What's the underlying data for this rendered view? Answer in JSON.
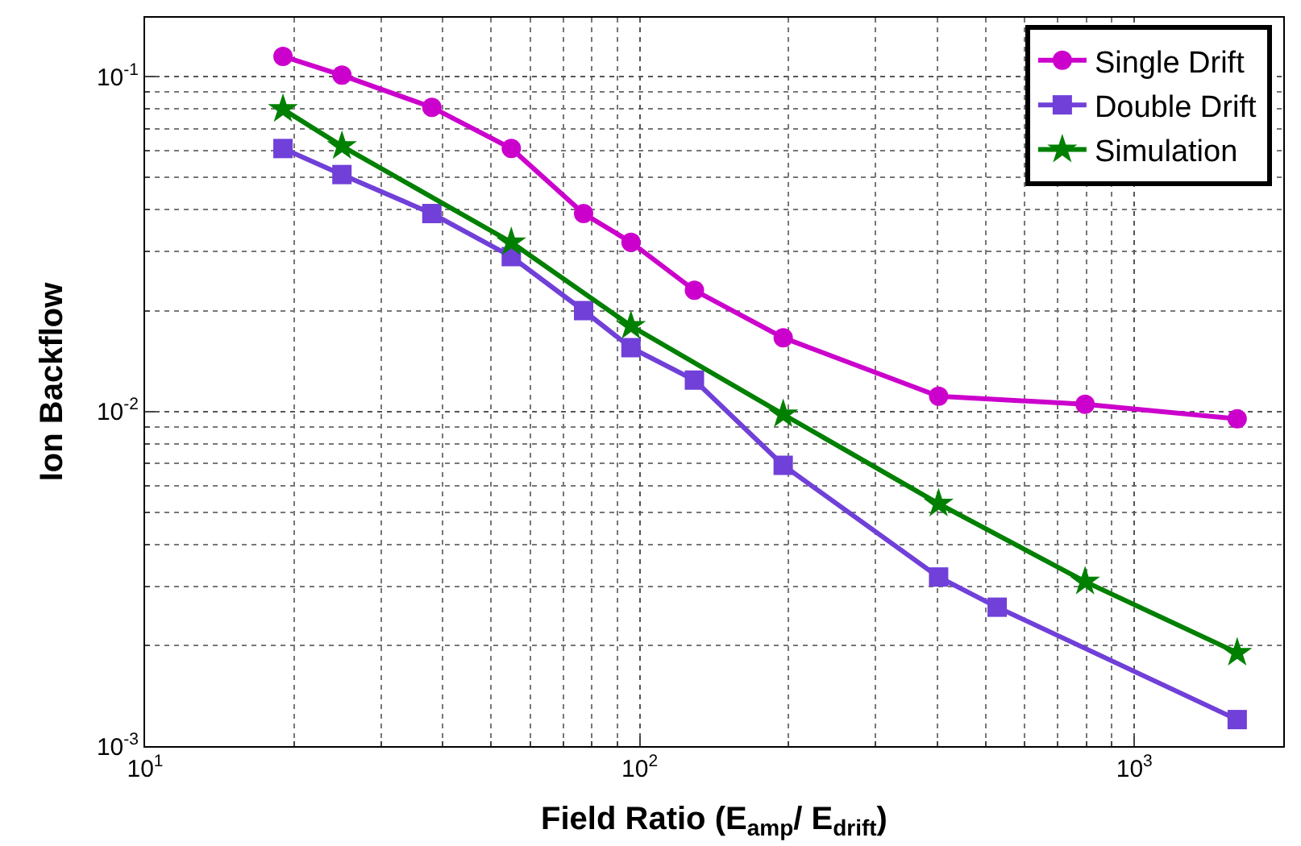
{
  "chart_data": {
    "type": "line",
    "xlabel": "Field Ratio (E$_{amp}$/ E$_{drift}$)",
    "ylabel": "Ion Backflow",
    "log": "xy",
    "grid": true,
    "legend": "top right",
    "line_style": "solid",
    "xlim": [
      10,
      2000
    ],
    "ylim": [
      0.001,
      0.15
    ],
    "xticks": [
      {
        "value": 10,
        "label": "10$^{1}$"
      },
      {
        "value": 100,
        "label": "10$^{2}$"
      },
      {
        "value": 1000,
        "label": "10$^{3}$"
      }
    ],
    "yticks": [
      {
        "value": 0.001,
        "label": "10$^{-3}$"
      },
      {
        "value": 0.01,
        "label": "10$^{-2}$"
      },
      {
        "value": 0.1,
        "label": "10$^{-1}$"
      }
    ],
    "series": [
      {
        "name": "Single Drift",
        "color": "#cc00cc",
        "marker": "circle",
        "x": [
          19,
          25,
          38,
          55,
          77,
          96,
          129,
          195,
          402,
          795,
          1614
        ],
        "values": [
          0.115,
          0.101,
          0.081,
          0.061,
          0.039,
          0.032,
          0.023,
          0.0166,
          0.0111,
          0.0105,
          0.0095
        ]
      },
      {
        "name": "Double Drift",
        "color": "#7040d8",
        "marker": "square",
        "x": [
          19,
          25,
          38,
          55,
          77,
          96,
          129,
          195,
          402,
          528,
          1614
        ],
        "values": [
          0.061,
          0.051,
          0.039,
          0.029,
          0.02,
          0.0155,
          0.0124,
          0.0069,
          0.0032,
          0.0026,
          0.0012
        ]
      },
      {
        "name": "Simulation",
        "color": "#008000",
        "marker": "star",
        "x": [
          19,
          25,
          55,
          96,
          195,
          402,
          795,
          1614
        ],
        "values": [
          0.08,
          0.062,
          0.032,
          0.018,
          0.0098,
          0.0053,
          0.0031,
          0.0019
        ]
      }
    ]
  }
}
